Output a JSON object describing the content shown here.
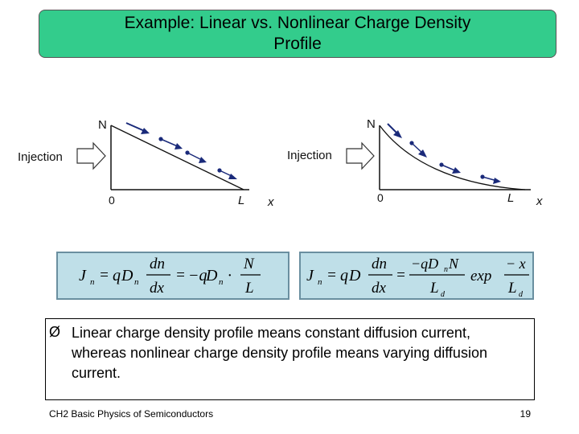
{
  "slide": {
    "title_line1": "Example:  Linear vs. Nonlinear Charge Density",
    "title_line2": "Profile",
    "title_color": "#33cc8c"
  },
  "figures": {
    "left": {
      "injection_label": "Injection",
      "y_label": "N",
      "origin_label": "0",
      "end_label": "L",
      "x_label": "x",
      "profile": "linear"
    },
    "right": {
      "injection_label": "Injection",
      "y_label": "N",
      "origin_label": "0",
      "end_label": "L",
      "x_label": "x",
      "profile": "nonlinear"
    },
    "arrow_color": "#1a2a7a"
  },
  "equations": {
    "left": {
      "lhs_sym": "J",
      "lhs_sub": "n",
      "eq1": "=",
      "q": "q",
      "D": "D",
      "D_sub": "n",
      "frac1_num": "dn",
      "frac1_den": "dx",
      "eq2": "=",
      "neg_q": "−q",
      "D2": "D",
      "D2_sub": "n",
      "dot": "·",
      "frac2_num": "N",
      "frac2_den": "L"
    },
    "right": {
      "lhs_sym": "J",
      "lhs_sub": "n",
      "eq1": "=",
      "q": "q",
      "D": "D",
      "frac1_num": "dn",
      "frac1_den": "dx",
      "eq2": "=",
      "frac2_num": "−qD",
      "frac2_num_sub": "n",
      "frac2_num_N": "N",
      "frac2_den": "L",
      "frac2_den_sub": "d",
      "exp": "exp",
      "frac3_num": "− x",
      "frac3_den": "L",
      "frac3_den_sub": "d"
    },
    "box_color": "#bfdfe8"
  },
  "bullet": {
    "marker": "Ø",
    "text": "Linear charge density profile means constant diffusion current, whereas nonlinear charge density profile means varying diffusion current."
  },
  "footer": {
    "left": "CH2    Basic Physics of Semiconductors",
    "page_number": "19"
  }
}
